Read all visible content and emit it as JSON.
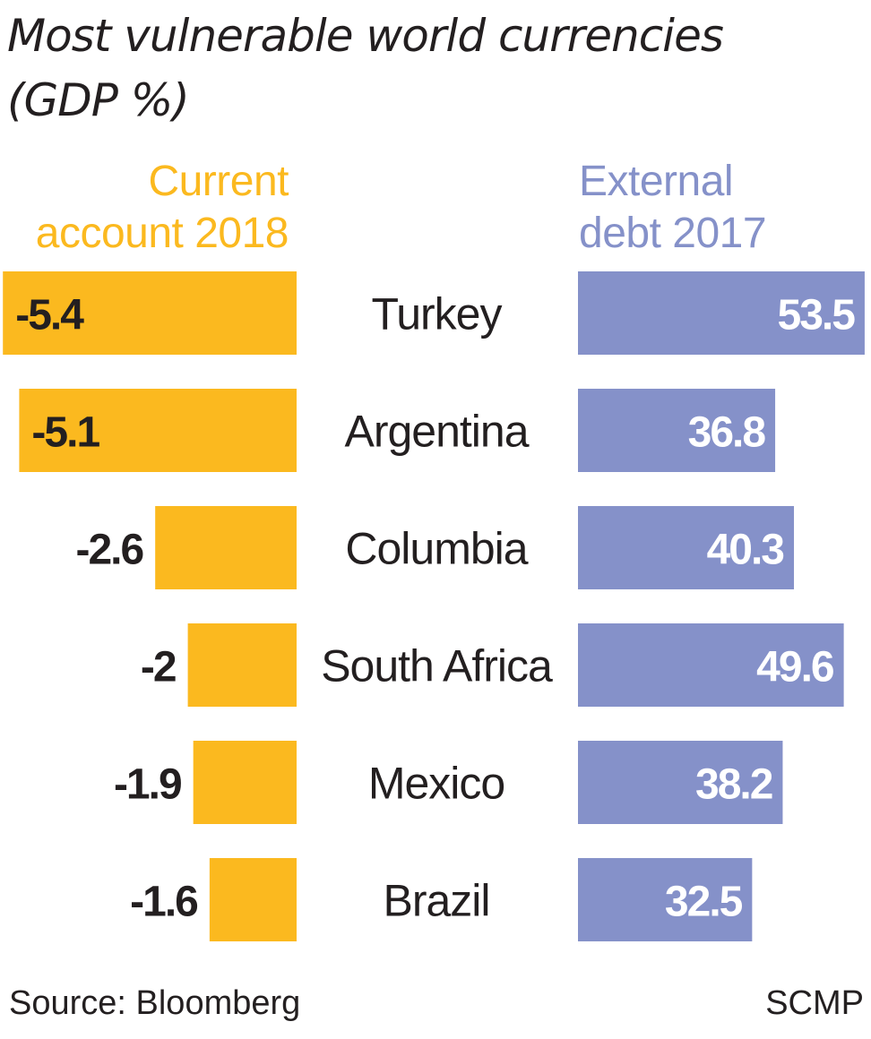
{
  "title": "Most vulnerable world currencies",
  "subtitle": "(GDP %)",
  "colors": {
    "current_account": "#fbb91f",
    "external_debt": "#8591c9",
    "text": "#231f20",
    "value_on_bar": "#ffffff"
  },
  "chart_data": {
    "type": "bar",
    "categories": [
      "Turkey",
      "Argentina",
      "Columbia",
      "South Africa",
      "Mexico",
      "Brazil"
    ],
    "series": [
      {
        "name": "Current account 2018",
        "values": [
          -5.4,
          -5.1,
          -2.6,
          -2,
          -1.9,
          -1.6
        ],
        "labels": [
          "-5.4",
          "-5.1",
          "-2.6",
          "-2",
          "-1.9",
          "-1.6"
        ]
      },
      {
        "name": "External debt 2017",
        "values": [
          53.5,
          36.8,
          40.3,
          49.6,
          38.2,
          32.5
        ],
        "labels": [
          "53.5",
          "36.8",
          "40.3",
          "49.6",
          "38.2",
          "32.5"
        ]
      }
    ],
    "legend_left": [
      "Current",
      "account 2018"
    ],
    "legend_right": [
      "External",
      "debt 2017"
    ]
  },
  "footer": {
    "source": "Source: Bloomberg",
    "credit": "SCMP"
  }
}
